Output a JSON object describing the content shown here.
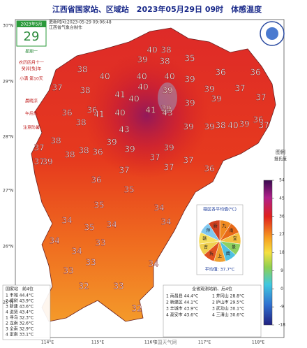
{
  "title": "江西省国家站、区域站　2023年05月29日 09时　体感温度",
  "update": "更新时间:2023-05-29 09:06:48",
  "maker": "江西省气象台制作",
  "calendar": {
    "month": "2023年5月",
    "day": "29",
    "weekday": "星期一",
    "lunar": "农历四月十一",
    "year": "癸卯[兔]年",
    "term": "小满 第10天",
    "note1": "晨晚凉",
    "note2": "午后热",
    "note3": "注意防暑"
  },
  "lat_labels": [
    "30°N",
    "29°N",
    "28°N",
    "27°N",
    "26°N",
    "25°N"
  ],
  "lon_labels": [
    "114°E",
    "115°E",
    "116°E",
    "117°E",
    "118°E"
  ],
  "stations": [
    40,
    38,
    39,
    38,
    35,
    38,
    40,
    40,
    40,
    39,
    36,
    36,
    37,
    40,
    39,
    38,
    39,
    37,
    41,
    40,
    39,
    37,
    39,
    39,
    36,
    36,
    41,
    40,
    41,
    43,
    39,
    39,
    40,
    38,
    39,
    36,
    37,
    38,
    43,
    39,
    37,
    38,
    38,
    39,
    39,
    38,
    36,
    37,
    37,
    39,
    37,
    37,
    36,
    37,
    36,
    35,
    35,
    34,
    34,
    34,
    35,
    34,
    34,
    33,
    34,
    33,
    33,
    34,
    32,
    33,
    32
  ],
  "legend": {
    "title": "图例",
    "unit": "摄氏度",
    "ticks": [
      54,
      45,
      36,
      27,
      18,
      9,
      0,
      -9,
      -18
    ],
    "lim": [
      -18,
      54
    ]
  },
  "pie": {
    "title": "赣区各平均值(°C)",
    "labels": [
      "九",
      "南",
      "宜",
      "景",
      "鹰",
      "上",
      "抚",
      "吉",
      "赣",
      "萍",
      "新"
    ],
    "average": "平均值: 37.7°C"
  },
  "table_left": {
    "title": "国家站　前4位",
    "rows": [
      "1 丰城 44.4°C",
      "2 樟树 43.9°C",
      "3 新建 43.6°C",
      "4 进贤 43.4°C",
      "1 寻乌 32.3°C",
      "2 龙南 32.6°C",
      "3 全南 32.9°C",
      "4 定南 33.1°C"
    ]
  },
  "table_right": {
    "title": "全省观测站前、后4位",
    "rows": [
      "1 南昌县 44.4°C",
      "2 新建区 44.1°C",
      "3 丰城市 43.9°C",
      "4 高安市 43.6°C",
      "1 井冈山 28.8°C",
      "2 庐山市 29.5°C",
      "3 武功山 30.1°C",
      "4 三清山 30.6°C"
    ]
  },
  "source": "中国天气网"
}
